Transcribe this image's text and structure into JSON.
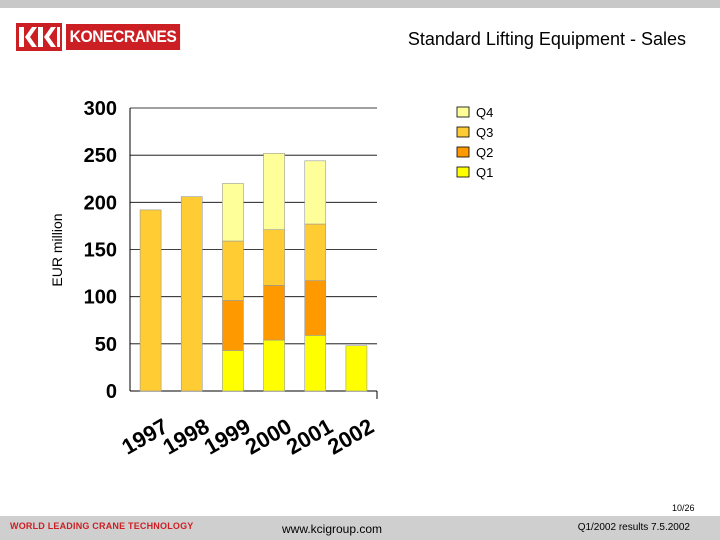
{
  "header": {
    "logo_text": "KONECRANES",
    "title": "Standard Lifting Equipment - Sales"
  },
  "footer": {
    "tagline": "WORLD LEADING CRANE TECHNOLOGY",
    "website": "www.kcigroup.com",
    "date_text": "Q1/2002 results 7.5.2002",
    "page": "10/26"
  },
  "colors": {
    "brand_red": "#cc1f24",
    "Q1": "#ffff00",
    "Q2": "#ff9900",
    "Q3": "#ffcc33",
    "Q4": "#ffff99",
    "full_year": "#ffcc33"
  },
  "chart_data": {
    "type": "bar",
    "stacked": true,
    "title": "Standard Lifting Equipment - Sales",
    "ylabel": "EUR million",
    "xlabel": "",
    "ylim": [
      0,
      300
    ],
    "yticks": [
      0,
      50,
      100,
      150,
      200,
      250,
      300
    ],
    "grid": true,
    "legend": "top-right",
    "categories": [
      "1997",
      "1998",
      "1999",
      "2000",
      "2001",
      "2002"
    ],
    "legend_order": [
      "Q4",
      "Q3",
      "Q2",
      "Q1"
    ],
    "series": [
      {
        "name": "Q1",
        "values": [
          null,
          null,
          43,
          54,
          59,
          48
        ]
      },
      {
        "name": "Q2",
        "values": [
          null,
          null,
          53,
          58,
          58,
          null
        ]
      },
      {
        "name": "Q3",
        "values": [
          null,
          null,
          63,
          59,
          60,
          null
        ]
      },
      {
        "name": "Q4",
        "values": [
          null,
          null,
          61,
          81,
          67,
          null
        ]
      }
    ],
    "full_year_values": [
      192,
      206,
      null,
      null,
      null,
      null
    ]
  }
}
